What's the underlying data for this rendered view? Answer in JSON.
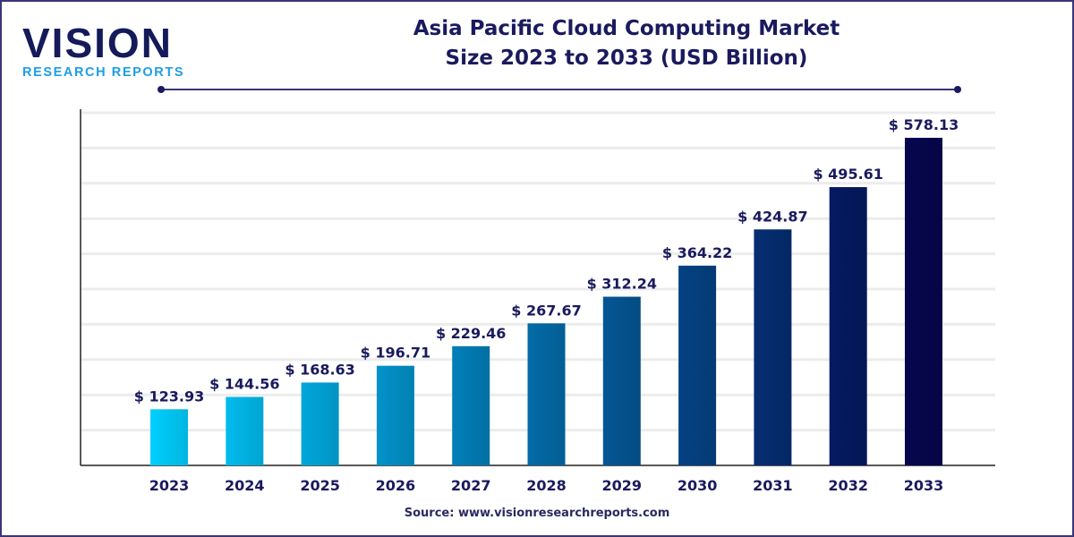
{
  "logo": {
    "main": "VISION",
    "sub": "RESEARCH REPORTS"
  },
  "title_lines": [
    "Asia Pacific Cloud Computing Market",
    "Size 2023 to 2033 (USD Billion)"
  ],
  "source": "Source: www.visionresearchreports.com",
  "colors": {
    "title": "#1a1a5e",
    "bar_start": "#00cfff",
    "bar_end": "#06064f",
    "frame": "#3b3578",
    "logo_blue": "#1e9de8"
  },
  "chart_data": {
    "type": "bar",
    "title": "Asia Pacific Cloud Computing Market Size 2023 to 2033 (USD Billion)",
    "categories": [
      "2023",
      "2024",
      "2025",
      "2026",
      "2027",
      "2028",
      "2029",
      "2030",
      "2031",
      "2032",
      "2033"
    ],
    "values": [
      123.93,
      144.56,
      168.63,
      196.71,
      229.46,
      267.67,
      312.24,
      364.22,
      424.87,
      495.61,
      578.13
    ],
    "labels": [
      "$ 123.93",
      "$ 144.56",
      "$ 168.63",
      "$ 196.71",
      "$ 229.46",
      "$ 267.67",
      "$ 312.24",
      "$ 364.22",
      "$ 424.87",
      "$ 495.61",
      "$ 578.13"
    ],
    "xlabel": "",
    "ylabel": "",
    "ylim": [
      30,
      620
    ],
    "grid": true,
    "legend": "none"
  }
}
